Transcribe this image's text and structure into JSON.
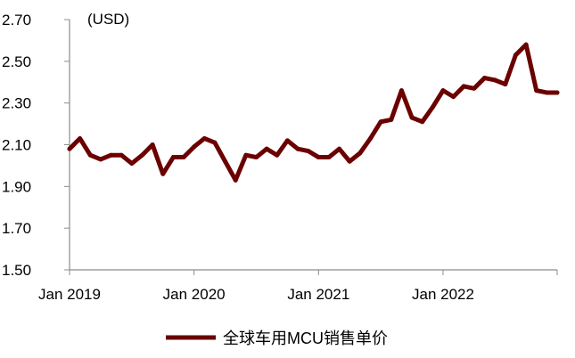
{
  "chart_data": {
    "type": "line",
    "unit_label": "(USD)",
    "x_tick_labels": [
      "Jan 2019",
      "Jan 2020",
      "Jan 2021",
      "Jan 2022"
    ],
    "y_tick_labels": [
      "1.50",
      "1.70",
      "1.90",
      "2.10",
      "2.30",
      "2.50",
      "2.70"
    ],
    "ylim": [
      1.5,
      2.7
    ],
    "x_range_months": [
      0,
      47
    ],
    "grid": false,
    "legend_position": "bottom-center",
    "series": [
      {
        "name": "全球车用MCU销售单价",
        "color": "#6b0000",
        "x": [
          0,
          1,
          2,
          3,
          4,
          5,
          6,
          7,
          8,
          9,
          10,
          11,
          12,
          13,
          14,
          15,
          16,
          17,
          18,
          19,
          20,
          21,
          22,
          23,
          24,
          25,
          26,
          27,
          28,
          29,
          30,
          31,
          32,
          33,
          34,
          35,
          36,
          37,
          38,
          39,
          40,
          41,
          42,
          43,
          44,
          45,
          46,
          47
        ],
        "values": [
          2.08,
          2.13,
          2.05,
          2.03,
          2.05,
          2.05,
          2.01,
          2.05,
          2.1,
          1.96,
          2.04,
          2.04,
          2.09,
          2.13,
          2.11,
          2.02,
          1.93,
          2.05,
          2.04,
          2.08,
          2.05,
          2.12,
          2.08,
          2.07,
          2.04,
          2.04,
          2.08,
          2.02,
          2.06,
          2.13,
          2.21,
          2.22,
          2.36,
          2.23,
          2.21,
          2.28,
          2.36,
          2.33,
          2.38,
          2.37,
          2.42,
          2.41,
          2.39,
          2.53,
          2.58,
          2.36,
          2.35,
          2.35
        ]
      }
    ]
  }
}
